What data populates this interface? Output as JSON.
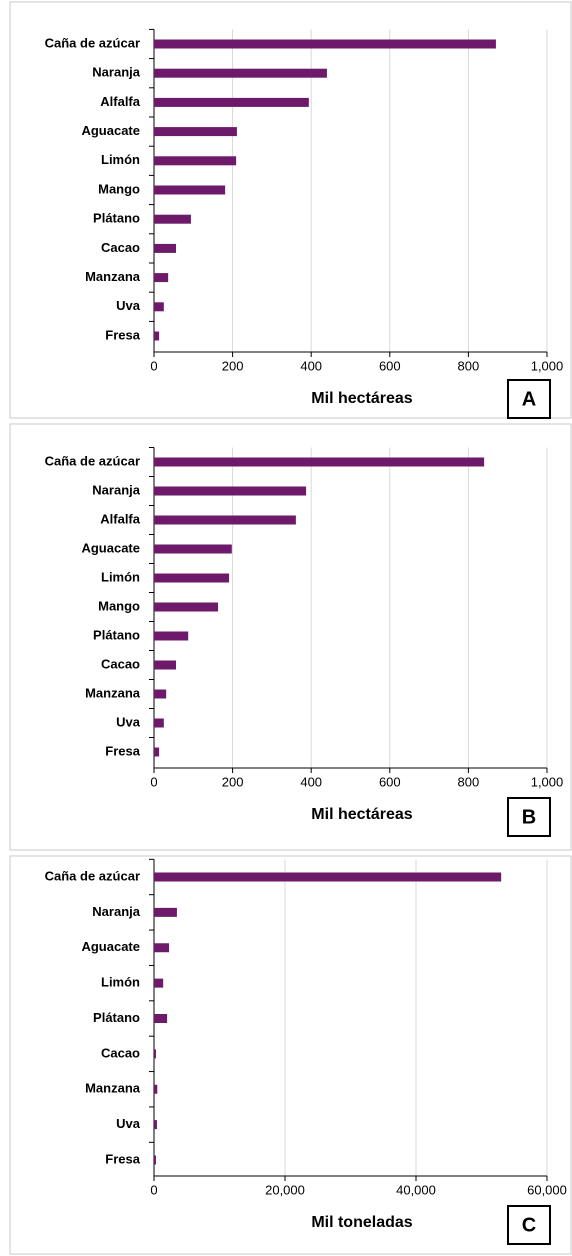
{
  "chart_data": [
    {
      "type": "bar",
      "orientation": "horizontal",
      "panel_label": "A",
      "xlabel": "Mil hectáreas",
      "categories": [
        "Caña de azúcar",
        "Naranja",
        "Alfalfa",
        "Aguacate",
        "Limón",
        "Mango",
        "Plátano",
        "Cacao",
        "Manzana",
        "Uva",
        "Fresa"
      ],
      "values": [
        870,
        440,
        394,
        211,
        209,
        181,
        94,
        56,
        36,
        25,
        13
      ],
      "color": "#6e1a6b",
      "xlim": [
        0,
        1000
      ],
      "xticks": [
        0,
        200,
        400,
        600,
        800,
        {
          "value": 1000,
          "label": "1,000"
        }
      ],
      "grid": true
    },
    {
      "type": "bar",
      "orientation": "horizontal",
      "panel_label": "B",
      "xlabel": "Mil hectáreas",
      "categories": [
        "Caña de azúcar",
        "Naranja",
        "Alfalfa",
        "Aguacate",
        "Limón",
        "Mango",
        "Plátano",
        "Cacao",
        "Manzana",
        "Uva",
        "Fresa"
      ],
      "values": [
        840,
        387,
        361,
        198,
        191,
        163,
        87,
        56,
        31,
        25,
        13
      ],
      "color": "#6e1a6b",
      "xlim": [
        0,
        1000
      ],
      "xticks": [
        0,
        200,
        400,
        600,
        800,
        {
          "value": 1000,
          "label": "1,000"
        }
      ],
      "grid": true
    },
    {
      "type": "bar",
      "orientation": "horizontal",
      "panel_label": "C",
      "xlabel": "Mil toneladas",
      "categories": [
        "Caña de azúcar",
        "Naranja",
        "Aguacate",
        "Limón",
        "Plátano",
        "Cacao",
        "Manzana",
        "Uva",
        "Fresa"
      ],
      "values": [
        53000,
        3500,
        2300,
        1400,
        2000,
        300,
        500,
        450,
        300
      ],
      "color": "#6e1a6b",
      "xlim": [
        0,
        60000
      ],
      "xticks": [
        0,
        {
          "value": 20000,
          "label": "20,000"
        },
        {
          "value": 40000,
          "label": "40,000"
        },
        {
          "value": 60000,
          "label": "60,000"
        }
      ],
      "grid": true
    }
  ]
}
